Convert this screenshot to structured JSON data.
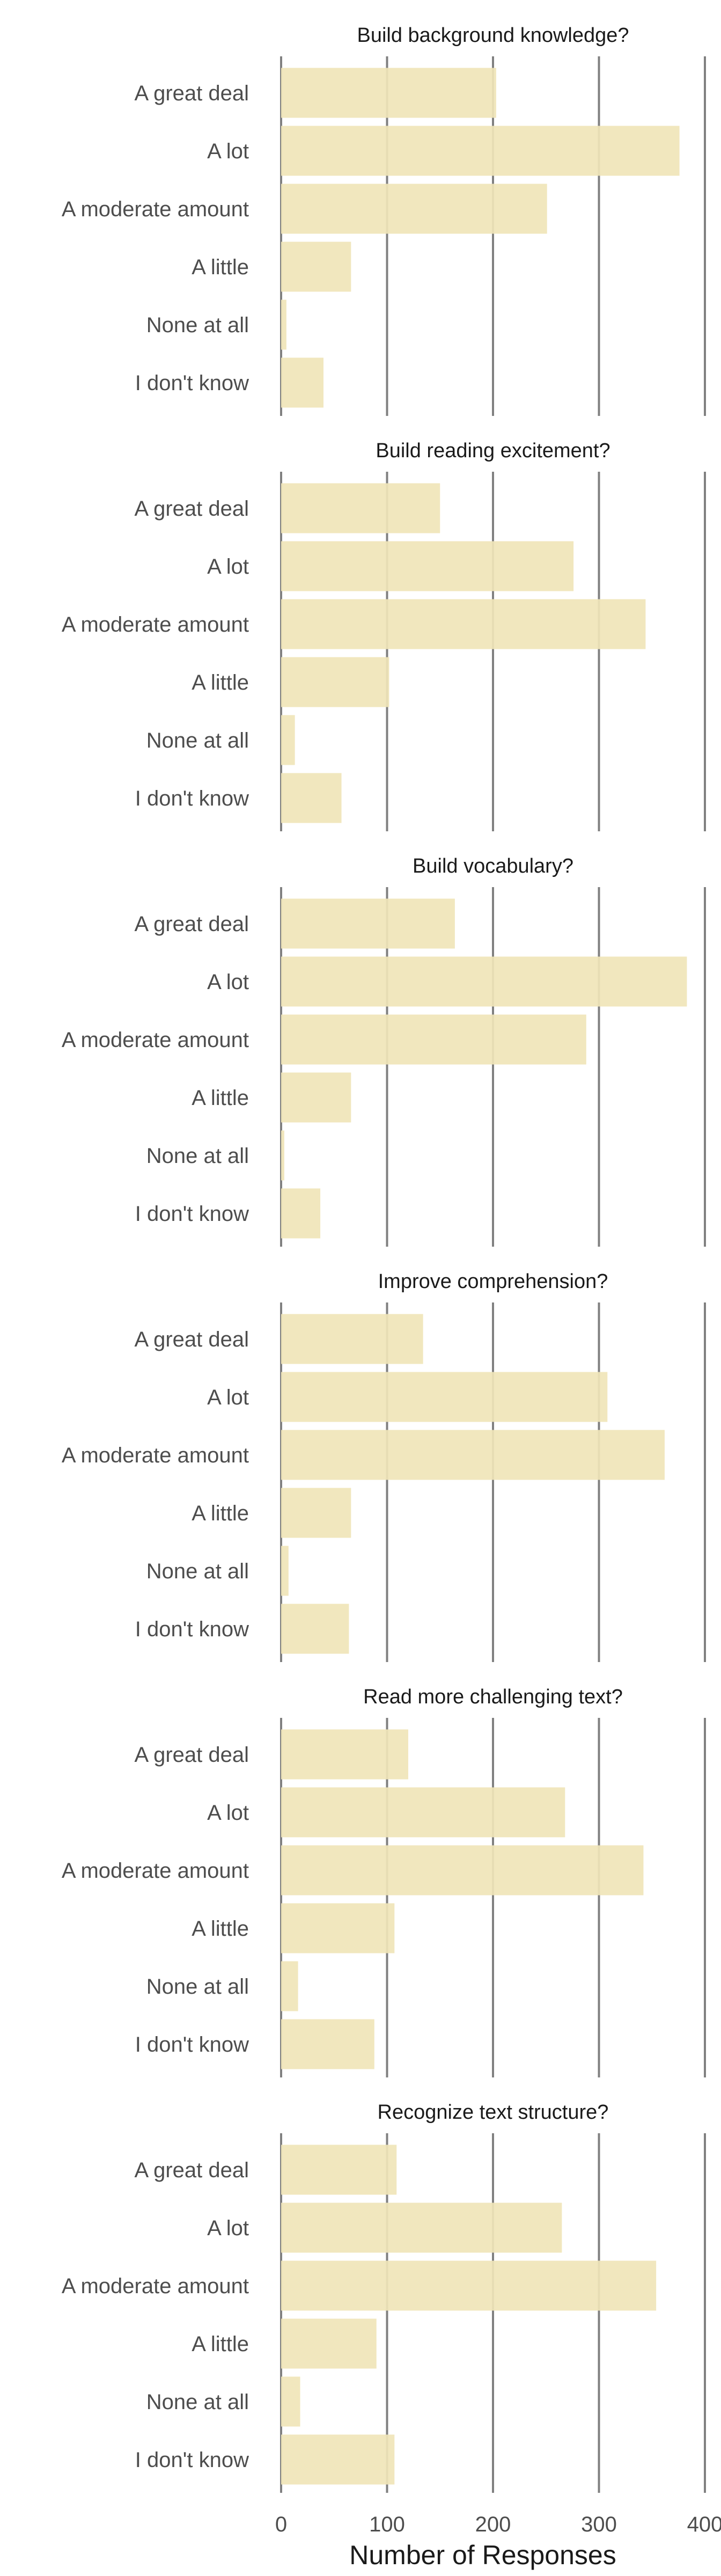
{
  "chart_data": {
    "type": "bar",
    "orientation": "horizontal",
    "facets": [
      {
        "title": "Build background knowledge?",
        "categories": [
          "A great deal",
          "A lot",
          "A moderate amount",
          "A little",
          "None at all",
          "I don't know"
        ],
        "values": [
          203,
          376,
          251,
          66,
          5,
          40
        ]
      },
      {
        "title": "Build reading excitement?",
        "categories": [
          "A great deal",
          "A lot",
          "A moderate amount",
          "A little",
          "None at all",
          "I don't know"
        ],
        "values": [
          150,
          276,
          344,
          102,
          13,
          57
        ]
      },
      {
        "title": "Build vocabulary?",
        "categories": [
          "A great deal",
          "A lot",
          "A moderate amount",
          "A little",
          "None at all",
          "I don't know"
        ],
        "values": [
          164,
          383,
          288,
          66,
          3,
          37
        ]
      },
      {
        "title": "Improve comprehension?",
        "categories": [
          "A great deal",
          "A lot",
          "A moderate amount",
          "A little",
          "None at all",
          "I don't know"
        ],
        "values": [
          134,
          308,
          362,
          66,
          7,
          64
        ]
      },
      {
        "title": "Read more challenging text?",
        "categories": [
          "A great deal",
          "A lot",
          "A moderate amount",
          "A little",
          "None at all",
          "I don't know"
        ],
        "values": [
          120,
          268,
          342,
          107,
          16,
          88
        ]
      },
      {
        "title": "Recognize text structure?",
        "categories": [
          "A great deal",
          "A lot",
          "A moderate amount",
          "A little",
          "None at all",
          "I don't know"
        ],
        "values": [
          109,
          265,
          354,
          90,
          18,
          107
        ]
      }
    ],
    "xlabel": "Number of Responses",
    "ylabel": "",
    "xlim": [
      0,
      400
    ],
    "xticks": [
      0,
      100,
      200,
      300,
      400
    ],
    "grid": "vertical major lines",
    "bar_color": "#f0e5b8",
    "grid_color": "#808080"
  }
}
